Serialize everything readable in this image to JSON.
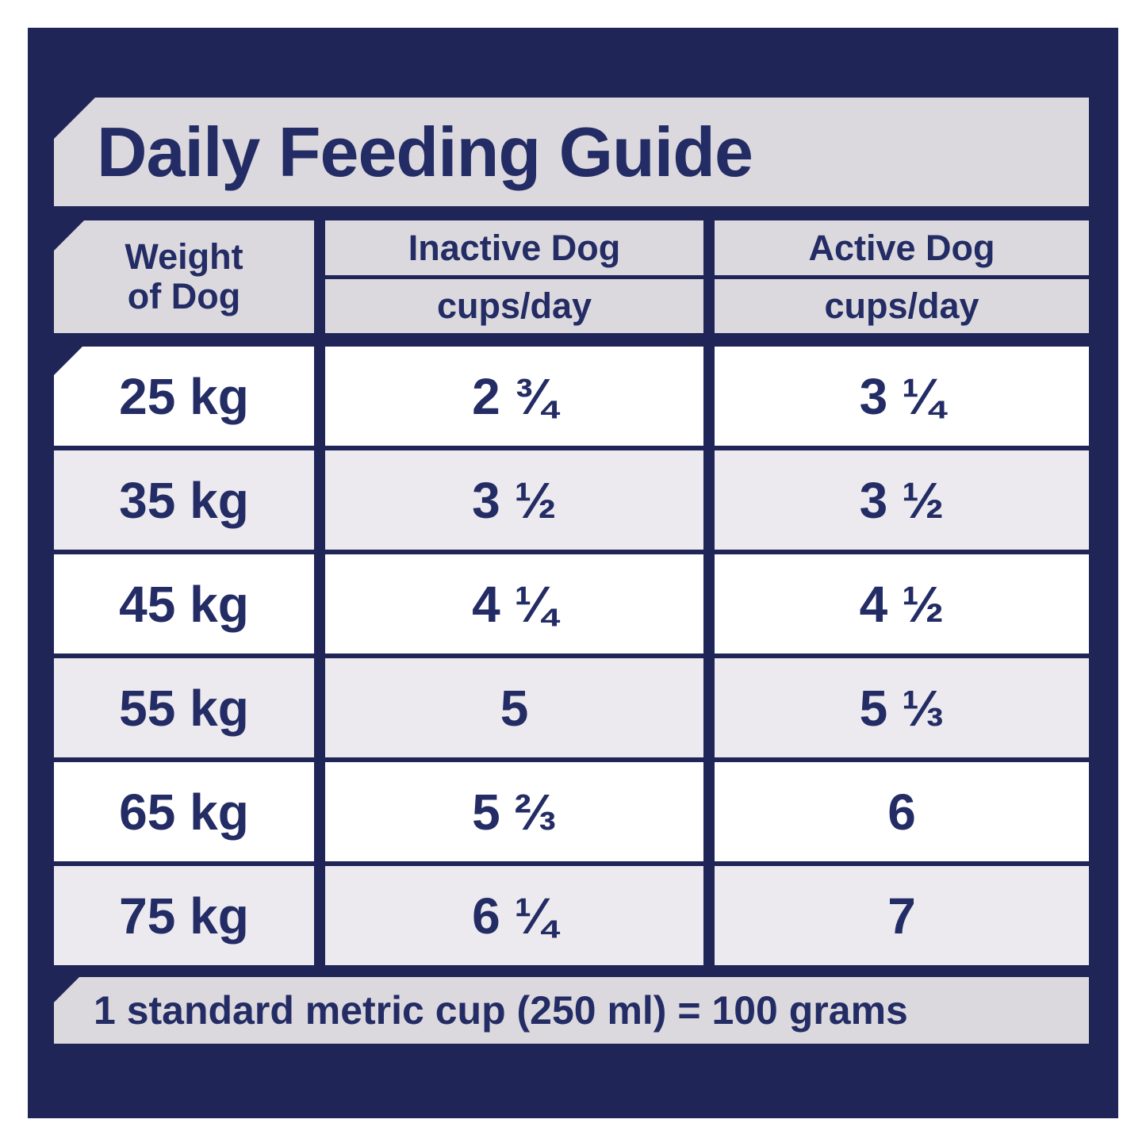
{
  "title": "Daily Feeding Guide",
  "colors": {
    "panel_navy": "#1f2557",
    "text_navy": "#232c64",
    "banner_gray": "#dcd9de",
    "row_white": "#ffffff",
    "row_alt_gray": "#eceaef"
  },
  "table": {
    "weight_header": {
      "line1": "Weight",
      "line2": "of Dog"
    },
    "columns": [
      {
        "label": "Inactive Dog",
        "sublabel": "cups/day"
      },
      {
        "label": "Active Dog",
        "sublabel": "cups/day"
      }
    ],
    "rows": [
      {
        "weight": "25 kg",
        "inactive": "2 ¾",
        "active": "3 ¼"
      },
      {
        "weight": "35 kg",
        "inactive": "3 ½",
        "active": "3 ½"
      },
      {
        "weight": "45 kg",
        "inactive": "4 ¼",
        "active": "4 ½"
      },
      {
        "weight": "55 kg",
        "inactive": "5",
        "active": "5 ⅓"
      },
      {
        "weight": "65 kg",
        "inactive": "5 ⅔",
        "active": "6"
      },
      {
        "weight": "75 kg",
        "inactive": "6 ¼",
        "active": "7"
      }
    ]
  },
  "footer": {
    "note": "1 standard metric cup (250 ml) = 100 grams"
  }
}
